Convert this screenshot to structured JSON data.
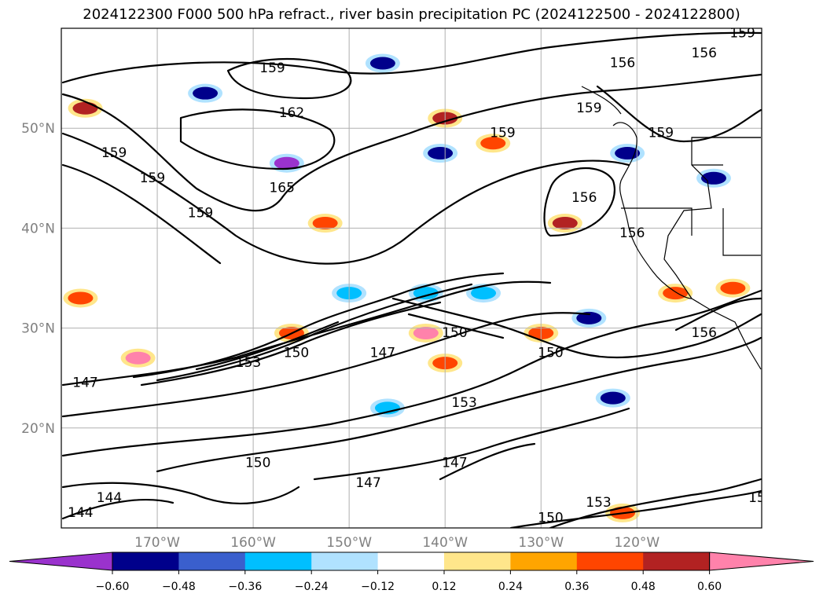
{
  "title": "2024122300 F000 500 hPa refract., river basin precipitation PC (2024122500 - 2024122800)",
  "map": {
    "lon_range": [
      -180,
      -107
    ],
    "lat_range": [
      10,
      60
    ],
    "lon_ticks": [
      {
        "value": -170,
        "label": "170°W"
      },
      {
        "value": -160,
        "label": "160°W"
      },
      {
        "value": -150,
        "label": "150°W"
      },
      {
        "value": -140,
        "label": "140°W"
      },
      {
        "value": -130,
        "label": "130°W"
      },
      {
        "value": -120,
        "label": "120°W"
      }
    ],
    "lat_ticks": [
      {
        "value": 20,
        "label": "20°N"
      },
      {
        "value": 30,
        "label": "30°N"
      },
      {
        "value": 40,
        "label": "40°N"
      },
      {
        "value": 50,
        "label": "50°N"
      }
    ],
    "gridlines": true
  },
  "contour_labels": [
    {
      "text": "159",
      "lon": -158,
      "lat": 56
    },
    {
      "text": "162",
      "lon": -156,
      "lat": 51.5
    },
    {
      "text": "165",
      "lon": -157,
      "lat": 44
    },
    {
      "text": "159",
      "lon": -174.5,
      "lat": 47.5
    },
    {
      "text": "159",
      "lon": -170.5,
      "lat": 45
    },
    {
      "text": "159",
      "lon": -165.5,
      "lat": 41.5
    },
    {
      "text": "159",
      "lon": -134,
      "lat": 49.5
    },
    {
      "text": "159",
      "lon": -125,
      "lat": 52
    },
    {
      "text": "156",
      "lon": -121.5,
      "lat": 56.5
    },
    {
      "text": "156",
      "lon": -113,
      "lat": 57.5
    },
    {
      "text": "159",
      "lon": -109,
      "lat": 59.5
    },
    {
      "text": "159",
      "lon": -117.5,
      "lat": 49.5
    },
    {
      "text": "156",
      "lon": -125.5,
      "lat": 43
    },
    {
      "text": "156",
      "lon": -120.5,
      "lat": 39.5
    },
    {
      "text": "147",
      "lon": -177.5,
      "lat": 24.5
    },
    {
      "text": "153",
      "lon": -160.5,
      "lat": 26.5
    },
    {
      "text": "150",
      "lon": -155.5,
      "lat": 27.5
    },
    {
      "text": "147",
      "lon": -146.5,
      "lat": 27.5
    },
    {
      "text": "150",
      "lon": -139,
      "lat": 29.5
    },
    {
      "text": "150",
      "lon": -129,
      "lat": 27.5
    },
    {
      "text": "153",
      "lon": -138,
      "lat": 22.5
    },
    {
      "text": "156",
      "lon": -113,
      "lat": 29.5
    },
    {
      "text": "150",
      "lon": -159.5,
      "lat": 16.5
    },
    {
      "text": "147",
      "lon": -148,
      "lat": 14.5
    },
    {
      "text": "147",
      "lon": -139,
      "lat": 16.5
    },
    {
      "text": "153",
      "lon": -124,
      "lat": 12.5
    },
    {
      "text": "150",
      "lon": -129,
      "lat": 11
    },
    {
      "text": "144",
      "lon": -175,
      "lat": 13
    },
    {
      "text": "144",
      "lon": -178,
      "lat": 11.5
    },
    {
      "text": "15",
      "lon": -107.5,
      "lat": 13
    }
  ],
  "colorbar": {
    "levels": [
      -0.6,
      -0.48,
      -0.36,
      -0.24,
      -0.12,
      0.12,
      0.24,
      0.36,
      0.48,
      0.6
    ],
    "tick_labels": [
      "−0.60",
      "−0.48",
      "−0.36",
      "−0.24",
      "−0.12",
      "0.12",
      "0.24",
      "0.36",
      "0.48",
      "0.60"
    ],
    "colors": [
      "#9a32cd",
      "#00008b",
      "#3a5fcd",
      "#00bfff",
      "#b0e2ff",
      "#ffffff",
      "#ffe68b",
      "#ffa500",
      "#ff4500",
      "#b22222",
      "#ff82ab"
    ]
  },
  "shaded_areas": [
    {
      "lon": -156.5,
      "lat": 46.5,
      "val": -0.62
    },
    {
      "lon": -140.5,
      "lat": 47.5,
      "val": -0.5
    },
    {
      "lon": -165,
      "lat": 53.5,
      "val": -0.5
    },
    {
      "lon": -146.5,
      "lat": 56.5,
      "val": -0.5
    },
    {
      "lon": -121,
      "lat": 47.5,
      "val": -0.5
    },
    {
      "lon": -112,
      "lat": 45,
      "val": -0.5
    },
    {
      "lon": -122.5,
      "lat": 23,
      "val": -0.5
    },
    {
      "lon": -125,
      "lat": 31,
      "val": -0.5
    },
    {
      "lon": -152.5,
      "lat": 40.5,
      "val": 0.4
    },
    {
      "lon": -135,
      "lat": 48.5,
      "val": 0.4
    },
    {
      "lon": -172,
      "lat": 27,
      "val": 0.62
    },
    {
      "lon": -156,
      "lat": 29.5,
      "val": 0.45
    },
    {
      "lon": -142,
      "lat": 29.5,
      "val": 0.62
    },
    {
      "lon": -140,
      "lat": 26.5,
      "val": 0.4
    },
    {
      "lon": -177.5,
      "lat": 52,
      "val": 0.5
    },
    {
      "lon": -140,
      "lat": 51,
      "val": 0.5
    },
    {
      "lon": -178,
      "lat": 33,
      "val": 0.45
    },
    {
      "lon": -130,
      "lat": 29.5,
      "val": 0.4
    },
    {
      "lon": -127.5,
      "lat": 40.5,
      "val": 0.5
    },
    {
      "lon": -116,
      "lat": 33.5,
      "val": 0.45
    },
    {
      "lon": -110,
      "lat": 34,
      "val": 0.4
    },
    {
      "lon": -121.5,
      "lat": 11.5,
      "val": 0.4
    },
    {
      "lon": -150,
      "lat": 33.5,
      "val": -0.3
    },
    {
      "lon": -142,
      "lat": 33.5,
      "val": -0.3
    },
    {
      "lon": -146,
      "lat": 22,
      "val": -0.3
    },
    {
      "lon": -136,
      "lat": 33.5,
      "val": -0.3
    }
  ]
}
